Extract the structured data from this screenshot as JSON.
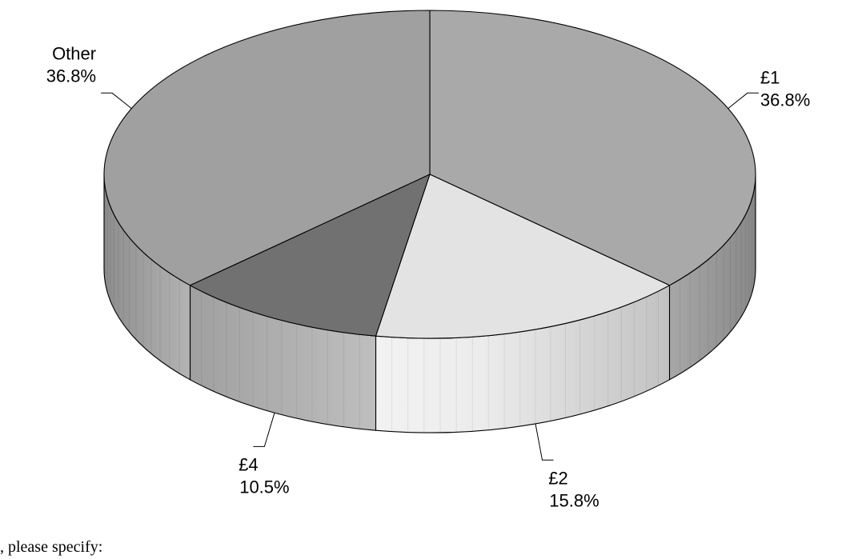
{
  "chart_data": {
    "type": "pie",
    "style": "3d",
    "title": "",
    "slices": [
      {
        "label": "£1",
        "value": 36.8,
        "value_label": "36.8%",
        "color": "#a9a9a9"
      },
      {
        "label": "£2",
        "value": 15.8,
        "value_label": "15.8%",
        "color": "#e3e3e3"
      },
      {
        "label": "£4",
        "value": 10.5,
        "value_label": "10.5%",
        "color": "#717171"
      },
      {
        "label": "Other",
        "value": 36.8,
        "value_label": "36.8%",
        "color": "#a0a0a0"
      }
    ]
  },
  "footer_fragment": ", please specify:"
}
